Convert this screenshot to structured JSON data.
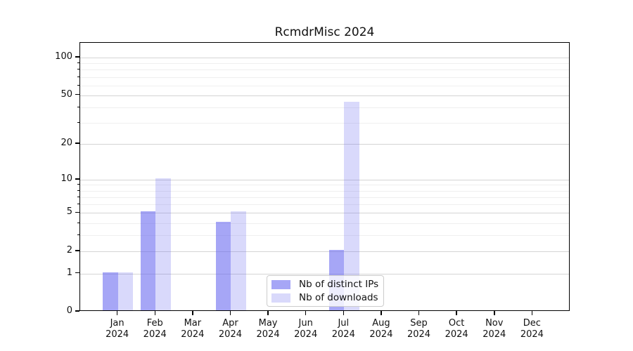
{
  "chart_data": {
    "type": "bar",
    "title": "RcmdrMisc 2024",
    "categories": [
      "Jan",
      "Feb",
      "Mar",
      "Apr",
      "May",
      "Jun",
      "Jul",
      "Aug",
      "Sep",
      "Oct",
      "Nov",
      "Dec"
    ],
    "category_year": "2024",
    "series": [
      {
        "name": "Nb of distinct IPs",
        "color": "rgba(102,102,240,0.58)",
        "solid_color": "#a6a6f6",
        "values": [
          1,
          5,
          0,
          4,
          0,
          0,
          2,
          0,
          0,
          0,
          0,
          0
        ]
      },
      {
        "name": "Nb of downloads",
        "color": "rgba(102,102,240,0.25)",
        "solid_color": "#d9d9fb",
        "values": [
          1,
          10,
          0,
          5,
          0,
          0,
          43,
          0,
          0,
          0,
          0,
          0
        ]
      }
    ],
    "yscale": "log1p",
    "ylim": [
      0,
      131
    ],
    "y_major_ticks": [
      0,
      1,
      2,
      5,
      10,
      20,
      50,
      100
    ],
    "y_minor_ticks": [
      3,
      4,
      6,
      7,
      8,
      9,
      30,
      40,
      60,
      70,
      80,
      90
    ],
    "xlabel": "",
    "ylabel": "",
    "grid": "horizontal",
    "legend_position": "lower-center"
  },
  "colors": {
    "background": "#ffffff",
    "axis": "#000000",
    "major_grid": "#d4d4d4",
    "minor_grid": "#efefef",
    "text": "#111111"
  }
}
